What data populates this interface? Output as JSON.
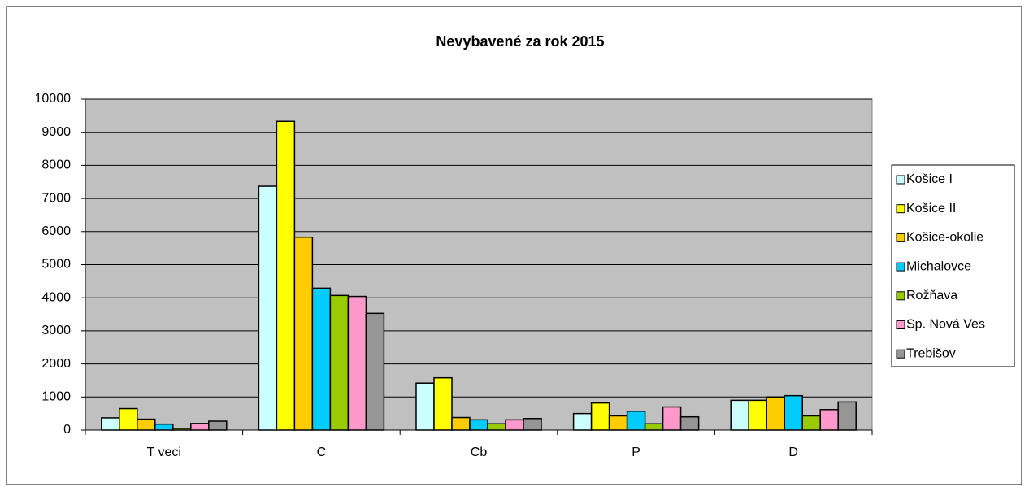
{
  "chart_data": {
    "type": "bar",
    "title": "Nevybavené za rok 2015",
    "categories": [
      "T veci",
      "C",
      "Cb",
      "P",
      "D"
    ],
    "series": [
      {
        "name": "Košice I",
        "color": "#ccffff",
        "values": [
          370,
          7370,
          1420,
          500,
          900
        ]
      },
      {
        "name": "Košice II",
        "color": "#ffff00",
        "values": [
          650,
          9330,
          1580,
          820,
          900
        ]
      },
      {
        "name": "Košice-okolie",
        "color": "#ffcc00",
        "values": [
          330,
          5830,
          380,
          430,
          1000
        ]
      },
      {
        "name": "Michalovce",
        "color": "#00ccff",
        "values": [
          180,
          4290,
          310,
          570,
          1040
        ]
      },
      {
        "name": "Rožňava",
        "color": "#99cc00",
        "values": [
          50,
          4070,
          190,
          190,
          430
        ]
      },
      {
        "name": "Sp. Nová Ves",
        "color": "#ff99cc",
        "values": [
          200,
          4040,
          310,
          700,
          620
        ]
      },
      {
        "name": "Trebišov",
        "color": "#969696",
        "values": [
          270,
          3530,
          350,
          400,
          850
        ]
      }
    ],
    "ylim": [
      0,
      10000
    ],
    "yticks": [
      0,
      1000,
      2000,
      3000,
      4000,
      5000,
      6000,
      7000,
      8000,
      9000,
      10000
    ],
    "grid": true,
    "legend": "right"
  }
}
